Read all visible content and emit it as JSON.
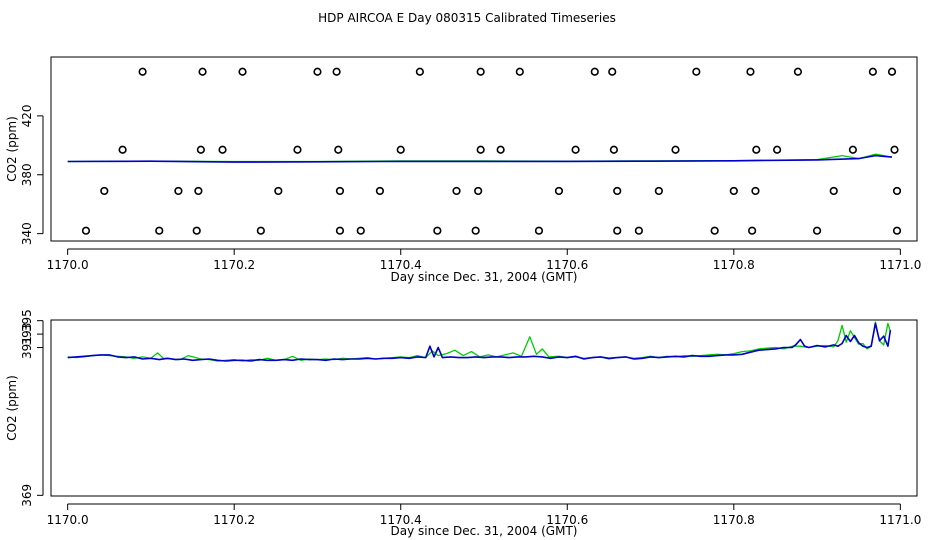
{
  "title": "HDP AIRCOA E  Day 080315  Calibrated Timeseries",
  "colors": {
    "series_a": "#00cc00",
    "series_b": "#0000cc",
    "axis": "#000000"
  },
  "chart_data": [
    {
      "type": "scatter",
      "title": "",
      "xlabel": "Day since Dec. 31, 2004 (GMT)",
      "ylabel": "CO2 (ppm)",
      "xlim": [
        1169.98,
        1171.02
      ],
      "ylim": [
        335,
        460
      ],
      "x_ticks": [
        "1170.0",
        "1170.2",
        "1170.4",
        "1170.6",
        "1170.8",
        "1171.0"
      ],
      "y_ticks": [
        "340",
        "380",
        "420"
      ],
      "grid": false,
      "points": [
        {
          "x": 1170.09,
          "y": 450
        },
        {
          "x": 1170.162,
          "y": 450
        },
        {
          "x": 1170.21,
          "y": 450
        },
        {
          "x": 1170.3,
          "y": 450
        },
        {
          "x": 1170.323,
          "y": 450
        },
        {
          "x": 1170.423,
          "y": 450
        },
        {
          "x": 1170.496,
          "y": 450
        },
        {
          "x": 1170.543,
          "y": 450
        },
        {
          "x": 1170.633,
          "y": 450
        },
        {
          "x": 1170.654,
          "y": 450
        },
        {
          "x": 1170.755,
          "y": 450
        },
        {
          "x": 1170.82,
          "y": 450
        },
        {
          "x": 1170.877,
          "y": 450
        },
        {
          "x": 1170.967,
          "y": 450
        },
        {
          "x": 1170.99,
          "y": 450
        },
        {
          "x": 1170.066,
          "y": 397
        },
        {
          "x": 1170.16,
          "y": 397
        },
        {
          "x": 1170.186,
          "y": 397
        },
        {
          "x": 1170.276,
          "y": 397
        },
        {
          "x": 1170.325,
          "y": 397
        },
        {
          "x": 1170.4,
          "y": 397
        },
        {
          "x": 1170.496,
          "y": 397
        },
        {
          "x": 1170.52,
          "y": 397
        },
        {
          "x": 1170.61,
          "y": 397
        },
        {
          "x": 1170.656,
          "y": 397
        },
        {
          "x": 1170.73,
          "y": 397
        },
        {
          "x": 1170.827,
          "y": 397
        },
        {
          "x": 1170.852,
          "y": 397
        },
        {
          "x": 1170.943,
          "y": 397
        },
        {
          "x": 1170.993,
          "y": 397
        },
        {
          "x": 1170.044,
          "y": 369
        },
        {
          "x": 1170.133,
          "y": 369
        },
        {
          "x": 1170.157,
          "y": 369
        },
        {
          "x": 1170.253,
          "y": 369
        },
        {
          "x": 1170.327,
          "y": 369
        },
        {
          "x": 1170.375,
          "y": 369
        },
        {
          "x": 1170.467,
          "y": 369
        },
        {
          "x": 1170.493,
          "y": 369
        },
        {
          "x": 1170.59,
          "y": 369
        },
        {
          "x": 1170.66,
          "y": 369
        },
        {
          "x": 1170.71,
          "y": 369
        },
        {
          "x": 1170.8,
          "y": 369
        },
        {
          "x": 1170.826,
          "y": 369
        },
        {
          "x": 1170.92,
          "y": 369
        },
        {
          "x": 1170.996,
          "y": 369
        },
        {
          "x": 1170.022,
          "y": 342
        },
        {
          "x": 1170.11,
          "y": 342
        },
        {
          "x": 1170.155,
          "y": 342
        },
        {
          "x": 1170.232,
          "y": 342
        },
        {
          "x": 1170.327,
          "y": 342
        },
        {
          "x": 1170.352,
          "y": 342
        },
        {
          "x": 1170.444,
          "y": 342
        },
        {
          "x": 1170.49,
          "y": 342
        },
        {
          "x": 1170.566,
          "y": 342
        },
        {
          "x": 1170.66,
          "y": 342
        },
        {
          "x": 1170.686,
          "y": 342
        },
        {
          "x": 1170.777,
          "y": 342
        },
        {
          "x": 1170.822,
          "y": 342
        },
        {
          "x": 1170.9,
          "y": 342
        },
        {
          "x": 1170.996,
          "y": 342
        }
      ],
      "series": [
        {
          "color": "#00cc00",
          "x": [
            1170.0,
            1170.1,
            1170.2,
            1170.3,
            1170.4,
            1170.5,
            1170.6,
            1170.7,
            1170.8,
            1170.9,
            1170.93,
            1170.95,
            1170.97,
            1170.99
          ],
          "values": [
            389,
            389.3,
            389,
            389,
            389.4,
            389.4,
            389.2,
            389.4,
            389.6,
            390.2,
            393,
            391,
            394,
            392
          ]
        },
        {
          "color": "#0000cc",
          "x": [
            1170.0,
            1170.1,
            1170.2,
            1170.3,
            1170.4,
            1170.5,
            1170.6,
            1170.7,
            1170.8,
            1170.9,
            1170.95,
            1170.97,
            1170.99
          ],
          "values": [
            389,
            389.2,
            388.6,
            388.8,
            389.1,
            389.1,
            389.1,
            389.2,
            389.5,
            390.1,
            391,
            393,
            392
          ]
        }
      ]
    },
    {
      "type": "line",
      "title": "",
      "xlabel": "Day since Dec. 31, 2004 (GMT)",
      "ylabel": "CO2 (ppm)",
      "xlim": [
        1169.98,
        1171.02
      ],
      "ylim": [
        368.9,
        395.1
      ],
      "x_ticks": [
        "1170.0",
        "1170.2",
        "1170.4",
        "1170.6",
        "1170.8",
        "1171.0"
      ],
      "y_ticks": [
        "369",
        "391",
        "393",
        "395"
      ],
      "grid": false,
      "series": [
        {
          "color": "#00cc00",
          "x": [
            1170.0,
            1170.01,
            1170.02,
            1170.03,
            1170.04,
            1170.05,
            1170.06,
            1170.07,
            1170.08,
            1170.09,
            1170.1,
            1170.108,
            1170.115,
            1170.125,
            1170.135,
            1170.145,
            1170.16,
            1170.17,
            1170.18,
            1170.19,
            1170.2,
            1170.21,
            1170.22,
            1170.23,
            1170.24,
            1170.25,
            1170.26,
            1170.27,
            1170.28,
            1170.29,
            1170.3,
            1170.31,
            1170.32,
            1170.33,
            1170.34,
            1170.35,
            1170.36,
            1170.37,
            1170.38,
            1170.39,
            1170.4,
            1170.41,
            1170.42,
            1170.43,
            1170.438,
            1170.445,
            1170.455,
            1170.465,
            1170.475,
            1170.485,
            1170.495,
            1170.505,
            1170.515,
            1170.525,
            1170.535,
            1170.545,
            1170.555,
            1170.563,
            1170.57,
            1170.578,
            1170.59,
            1170.6,
            1170.61,
            1170.62,
            1170.63,
            1170.64,
            1170.65,
            1170.66,
            1170.67,
            1170.68,
            1170.69,
            1170.7,
            1170.71,
            1170.72,
            1170.73,
            1170.74,
            1170.75,
            1170.76,
            1170.77,
            1170.78,
            1170.79,
            1170.8,
            1170.81,
            1170.82,
            1170.83,
            1170.84,
            1170.85,
            1170.86,
            1170.87,
            1170.88,
            1170.89,
            1170.9,
            1170.91,
            1170.92,
            1170.925,
            1170.93,
            1170.935,
            1170.94,
            1170.945,
            1170.95,
            1170.955,
            1170.96,
            1170.965,
            1170.97,
            1170.975,
            1170.98,
            1170.985,
            1170.988
          ],
          "values": [
            389.6,
            389.5,
            389.6,
            389.8,
            389.9,
            389.8,
            389.7,
            389.6,
            389.4,
            389.6,
            389.4,
            390.2,
            389.4,
            389.3,
            389.2,
            389.8,
            389.3,
            389.2,
            389.0,
            389.1,
            389.2,
            389.0,
            389.2,
            389.1,
            389.4,
            389.1,
            389.2,
            389.7,
            389.1,
            389.3,
            389.2,
            389.3,
            389.2,
            389.4,
            389.3,
            389.4,
            389.5,
            389.3,
            389.4,
            389.5,
            389.6,
            389.5,
            389.8,
            389.5,
            390.5,
            389.8,
            390.1,
            390.6,
            389.8,
            390.4,
            389.6,
            389.9,
            389.6,
            389.9,
            390.2,
            389.7,
            392.6,
            390.0,
            390.8,
            389.6,
            389.7,
            389.5,
            389.6,
            389.4,
            389.5,
            389.6,
            389.3,
            389.5,
            389.6,
            389.4,
            389.5,
            389.7,
            389.5,
            389.7,
            389.6,
            389.8,
            389.7,
            389.8,
            389.9,
            390.0,
            389.9,
            390.1,
            390.4,
            390.5,
            390.8,
            390.9,
            391.0,
            390.8,
            391.2,
            391.2,
            391.0,
            391.2,
            391.3,
            391.1,
            392.0,
            394.3,
            391.8,
            393.5,
            392.5,
            391.5,
            391.6,
            390.8,
            391.2,
            394.8,
            392.0,
            391.4,
            394.6,
            393.4
          ]
        },
        {
          "color": "#0000cc",
          "x": [
            1170.0,
            1170.01,
            1170.02,
            1170.03,
            1170.04,
            1170.05,
            1170.06,
            1170.07,
            1170.08,
            1170.09,
            1170.1,
            1170.11,
            1170.12,
            1170.13,
            1170.14,
            1170.15,
            1170.16,
            1170.17,
            1170.18,
            1170.19,
            1170.2,
            1170.21,
            1170.22,
            1170.23,
            1170.24,
            1170.25,
            1170.26,
            1170.27,
            1170.28,
            1170.29,
            1170.3,
            1170.31,
            1170.32,
            1170.33,
            1170.34,
            1170.35,
            1170.36,
            1170.37,
            1170.38,
            1170.39,
            1170.4,
            1170.41,
            1170.42,
            1170.43,
            1170.435,
            1170.44,
            1170.445,
            1170.45,
            1170.46,
            1170.47,
            1170.48,
            1170.49,
            1170.5,
            1170.51,
            1170.52,
            1170.53,
            1170.54,
            1170.55,
            1170.56,
            1170.57,
            1170.58,
            1170.59,
            1170.6,
            1170.61,
            1170.62,
            1170.63,
            1170.64,
            1170.65,
            1170.66,
            1170.67,
            1170.68,
            1170.69,
            1170.7,
            1170.71,
            1170.72,
            1170.73,
            1170.74,
            1170.75,
            1170.76,
            1170.77,
            1170.78,
            1170.79,
            1170.8,
            1170.81,
            1170.82,
            1170.83,
            1170.84,
            1170.85,
            1170.86,
            1170.87,
            1170.875,
            1170.88,
            1170.885,
            1170.89,
            1170.9,
            1170.91,
            1170.92,
            1170.925,
            1170.93,
            1170.935,
            1170.94,
            1170.945,
            1170.95,
            1170.955,
            1170.96,
            1170.965,
            1170.97,
            1170.975,
            1170.98,
            1170.985,
            1170.988
          ],
          "values": [
            389.5,
            389.6,
            389.7,
            389.8,
            389.9,
            389.9,
            389.6,
            389.5,
            389.6,
            389.3,
            389.4,
            389.2,
            389.4,
            389.2,
            389.3,
            389.1,
            389.2,
            389.3,
            389.1,
            389.0,
            389.1,
            389.1,
            389.0,
            389.2,
            389.1,
            389.1,
            389.2,
            389.1,
            389.3,
            389.2,
            389.2,
            389.1,
            389.3,
            389.2,
            389.3,
            389.3,
            389.4,
            389.3,
            389.4,
            389.4,
            389.5,
            389.4,
            389.6,
            389.5,
            391.2,
            389.6,
            391.0,
            389.5,
            389.6,
            389.5,
            389.5,
            389.6,
            389.5,
            389.6,
            389.6,
            389.5,
            389.6,
            389.6,
            389.7,
            389.6,
            389.4,
            389.6,
            389.5,
            389.7,
            389.3,
            389.5,
            389.6,
            389.4,
            389.5,
            389.6,
            389.3,
            389.4,
            389.6,
            389.5,
            389.6,
            389.7,
            389.6,
            389.8,
            389.7,
            389.7,
            389.8,
            389.9,
            389.9,
            390.0,
            390.3,
            390.6,
            390.7,
            390.8,
            391.0,
            391.0,
            391.5,
            392.2,
            391.2,
            391.0,
            391.3,
            391.1,
            391.4,
            391.2,
            391.6,
            392.8,
            391.9,
            392.8,
            391.7,
            391.2,
            391.0,
            391.2,
            394.6,
            392.0,
            392.7,
            391.2,
            393.6
          ]
        }
      ]
    }
  ]
}
